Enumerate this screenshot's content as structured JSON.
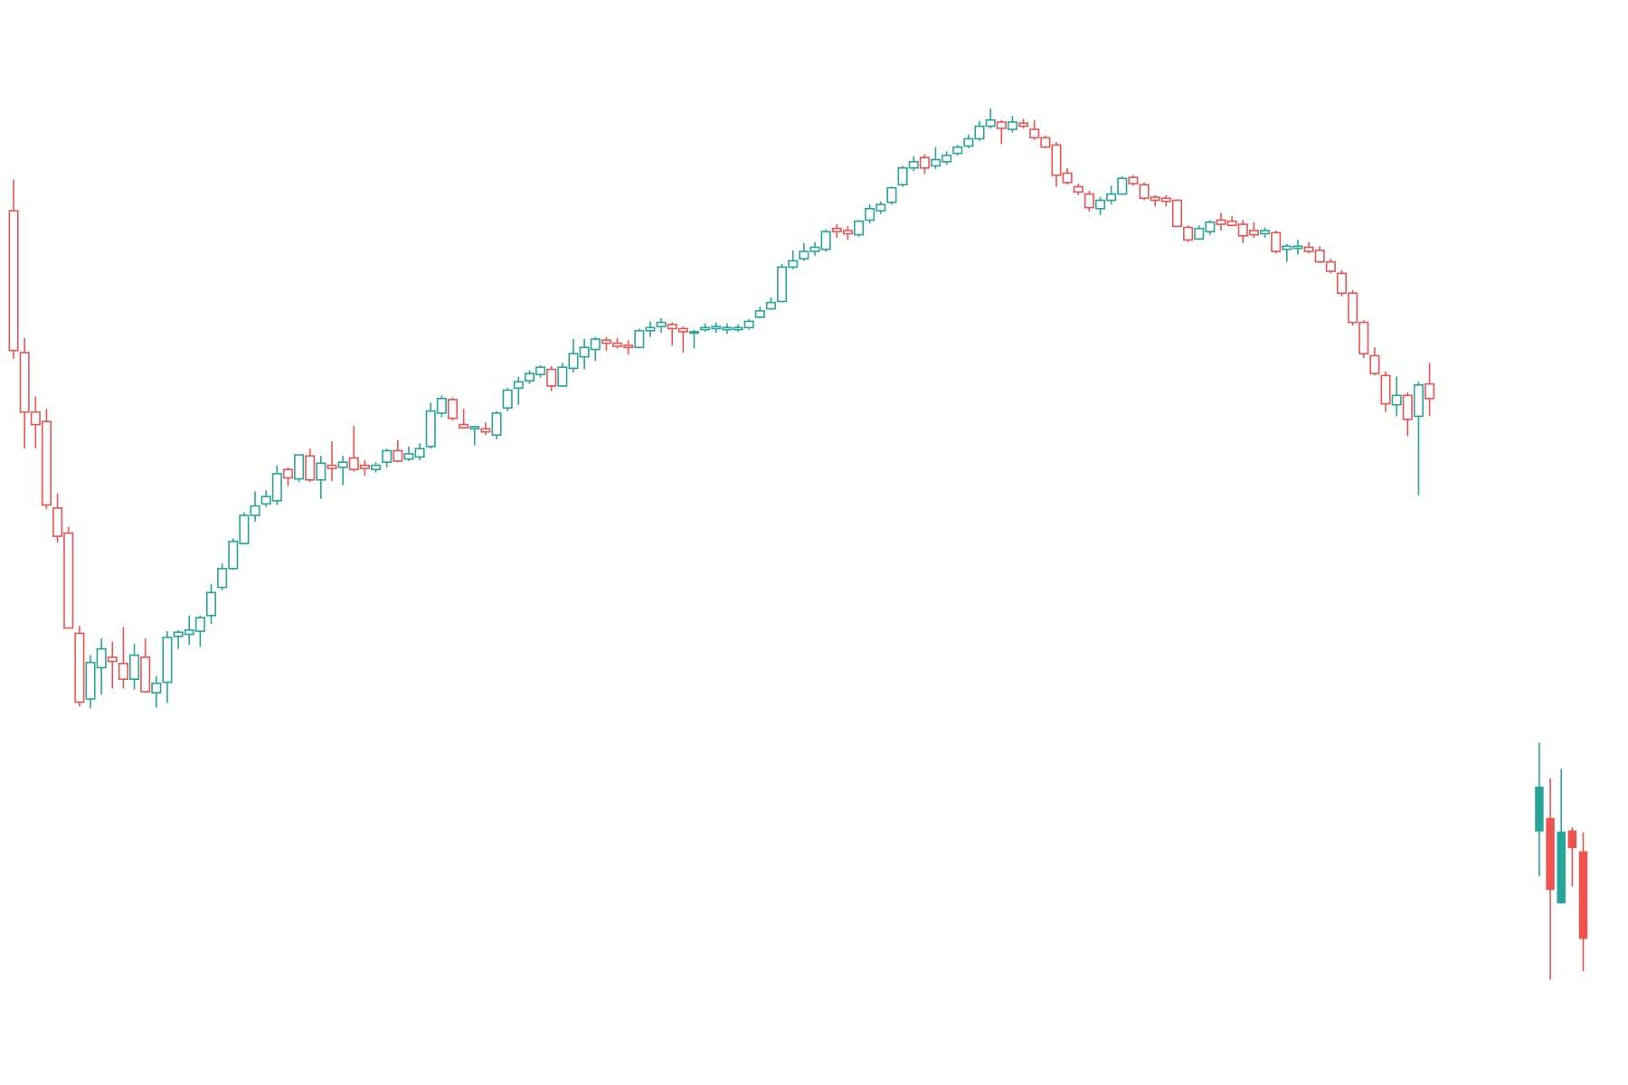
{
  "chart_data": {
    "type": "candlestick",
    "up_color": "#26a69a",
    "down_color": "#ef5350",
    "xlim": [
      -1.24,
      147.08
    ],
    "ylim": [
      0,
      1040
    ],
    "series": [
      {
        "style": "hollow",
        "x": [
          0,
          1,
          2,
          3,
          4,
          5,
          6,
          7,
          8,
          9,
          10,
          11,
          12,
          13,
          14,
          15,
          16,
          17,
          18,
          19,
          20,
          21,
          22,
          23,
          24,
          25,
          26,
          27,
          28,
          29,
          30,
          31,
          32,
          33,
          34,
          35,
          36,
          37,
          38,
          39,
          40,
          41,
          42,
          43,
          44,
          45,
          46,
          47,
          48,
          49,
          50,
          51,
          52,
          53,
          54,
          55,
          56,
          57,
          58,
          59,
          60,
          61,
          62,
          63,
          64,
          65,
          66,
          67,
          68,
          69,
          70,
          71,
          72,
          73,
          74,
          75,
          76,
          77,
          78,
          79,
          80,
          81,
          82,
          83,
          84,
          85,
          86,
          87,
          88,
          89,
          90,
          91,
          92,
          93,
          94,
          95,
          96,
          97,
          98,
          99,
          100,
          101,
          102,
          103,
          104,
          105,
          106,
          107,
          108,
          109,
          110,
          111,
          112,
          113,
          114,
          115,
          116,
          117,
          118,
          119,
          120,
          121,
          122,
          123,
          124,
          125,
          126,
          127,
          128,
          129
        ],
        "open": [
          838,
          702,
          645,
          636,
          553,
          529,
          433,
          370,
          400,
          410,
          404,
          389,
          410,
          376,
          386,
          430,
          432,
          435,
          450,
          477,
          495,
          519,
          546,
          557,
          560,
          590,
          581,
          603,
          580,
          594,
          592,
          601,
          594,
          590,
          597,
          608,
          600,
          602,
          612,
          644,
          657,
          633,
          629,
          629,
          623,
          649,
          668,
          675,
          681,
          686,
          670,
          687,
          698,
          705,
          714,
          711,
          709,
          707,
          723,
          727,
          729,
          725,
          721,
          724,
          725,
          724,
          724,
          726,
          736,
          744,
          751,
          784,
          792,
          799,
          801,
          821,
          819,
          815,
          829,
          838,
          846,
          863,
          879,
          889,
          881,
          885,
          893,
          900,
          907,
          919,
          923,
          916,
          922,
          916,
          908,
          901,
          874,
          861,
          854,
          840,
          848,
          854,
          870,
          863,
          851,
          850,
          848,
          822,
          811,
          818,
          829,
          828,
          825,
          819,
          816,
          817,
          801,
          802,
          803,
          800,
          789,
          778,
          759,
          731,
          699,
          680,
          652,
          661,
          641,
          672
        ],
        "high": [
          868,
          716,
          660,
          648,
          567,
          535,
          440,
          412,
          428,
          425,
          439,
          423,
          428,
          392,
          435,
          436,
          450,
          450,
          480,
          500,
          524,
          549,
          569,
          570,
          594,
          592,
          604,
          610,
          603,
          617,
          603,
          632,
          599,
          597,
          610,
          618,
          612,
          615,
          654,
          661,
          659,
          648,
          632,
          635,
          646,
          668,
          679,
          685,
          690,
          689,
          692,
          715,
          715,
          717,
          717,
          716,
          714,
          725,
          732,
          735,
          731,
          727,
          724,
          730,
          731,
          730,
          729,
          734,
          746,
          755,
          787,
          800,
          807,
          808,
          820,
          825,
          823,
          829,
          844,
          847,
          861,
          881,
          890,
          892,
          899,
          895,
          901,
          911,
          924,
          936,
          925,
          929,
          926,
          925,
          910,
          904,
          879,
          864,
          857,
          851,
          862,
          871,
          872,
          865,
          853,
          853,
          849,
          824,
          824,
          829,
          836,
          833,
          829,
          827,
          822,
          819,
          806,
          810,
          808,
          804,
          792,
          781,
          762,
          733,
          707,
          684,
          679,
          664,
          674,
          692
        ],
        "low": [
          696,
          610,
          610,
          552,
          520,
          438,
          363,
          361,
          374,
          380,
          380,
          379,
          376,
          362,
          366,
          418,
          422,
          420,
          442,
          474,
          494,
          518,
          540,
          554,
          556,
          574,
          578,
          578,
          562,
          579,
          575,
          588,
          584,
          587,
          592,
          597,
          598,
          599,
          610,
          640,
          637,
          630,
          613,
          623,
          619,
          646,
          652,
          672,
          678,
          665,
          669,
          683,
          686,
          694,
          704,
          706,
          700,
          706,
          717,
          721,
          709,
          702,
          706,
          722,
          721,
          720,
          722,
          724,
          735,
          743,
          750,
          782,
          790,
          795,
          799,
          812,
          810,
          813,
          826,
          835,
          844,
          861,
          876,
          873,
          878,
          882,
          891,
          898,
          905,
          917,
          902,
          913,
          917,
          906,
          898,
          861,
          863,
          853,
          837,
          834,
          844,
          853,
          862,
          848,
          842,
          842,
          823,
          808,
          810,
          815,
          819,
          823,
          807,
          812,
          812,
          797,
          789,
          796,
          797,
          788,
          778,
          756,
          728,
          697,
          680,
          645,
          641,
          622,
          565,
          641
        ],
        "close": [
          704,
          645,
          633,
          556,
          526,
          438,
          367,
          405,
          418,
          406,
          389,
          412,
          377,
          385,
          429,
          434,
          436,
          448,
          472,
          495,
          521,
          546,
          555,
          564,
          586,
          582,
          604,
          580,
          596,
          591,
          597,
          590,
          591,
          594,
          608,
          598,
          605,
          610,
          646,
          658,
          639,
          630,
          631,
          626,
          644,
          666,
          674,
          682,
          688,
          670,
          688,
          701,
          707,
          715,
          711,
          708,
          707,
          723,
          726,
          731,
          725,
          722,
          722,
          726,
          727,
          726,
          726,
          732,
          742,
          750,
          784,
          790,
          799,
          803,
          818,
          818,
          816,
          828,
          840,
          844,
          860,
          879,
          885,
          879,
          887,
          891,
          899,
          907,
          919,
          925,
          917,
          923,
          919,
          908,
          899,
          872,
          865,
          856,
          841,
          848,
          854,
          869,
          864,
          850,
          848,
          847,
          823,
          810,
          821,
          827,
          825,
          824,
          814,
          815,
          819,
          799,
          804,
          804,
          799,
          789,
          780,
          759,
          731,
          701,
          682,
          653,
          661,
          638,
          671,
          658
        ]
      },
      {
        "style": "filled",
        "x": [
          139,
          140,
          141,
          142,
          143
        ],
        "open": [
          243,
          256,
          174,
          244,
          224
        ],
        "high": [
          328,
          294,
          303,
          247,
          242
        ],
        "low": [
          200,
          101,
          174,
          190,
          109
        ],
        "close": [
          286,
          187,
          243,
          227,
          140
        ]
      }
    ]
  }
}
